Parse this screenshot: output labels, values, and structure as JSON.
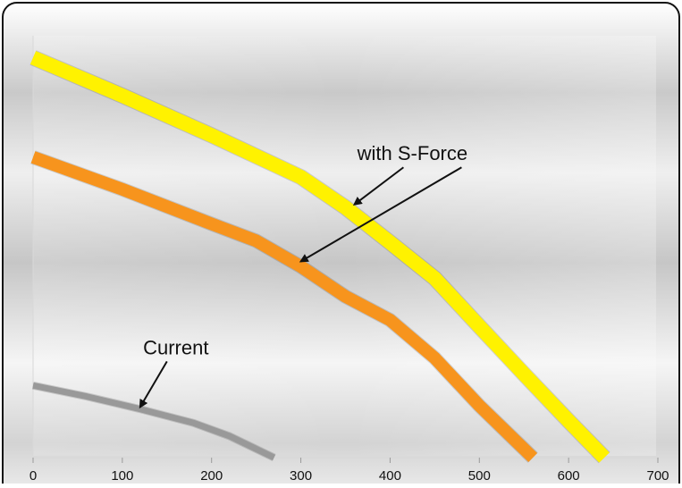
{
  "chart_data": {
    "type": "line",
    "title": "",
    "xlabel": "",
    "ylabel": "",
    "xlim": [
      0,
      700
    ],
    "ylim": [
      0,
      100
    ],
    "x_ticks": [
      0,
      100,
      200,
      300,
      400,
      500,
      600,
      700
    ],
    "x_tick_labels": [
      "0",
      "100",
      "200",
      "300",
      "400",
      "500",
      "600",
      "700"
    ],
    "grid": false,
    "legend": "none",
    "series": [
      {
        "color": "#FFF200",
        "points": [
          [
            0,
            94.8
          ],
          [
            100,
            85.8
          ],
          [
            200,
            76.4
          ],
          [
            300,
            66.5
          ],
          [
            350,
            59.3
          ],
          [
            400,
            51.0
          ],
          [
            450,
            42.5
          ],
          [
            500,
            31.1
          ],
          [
            550,
            19.8
          ],
          [
            600,
            8.7
          ],
          [
            640,
            0
          ]
        ]
      },
      {
        "color": "#F7941D",
        "points": [
          [
            0,
            71.2
          ],
          [
            100,
            63.6
          ],
          [
            200,
            55.4
          ],
          [
            250,
            51.4
          ],
          [
            300,
            45.3
          ],
          [
            350,
            38.2
          ],
          [
            400,
            32.6
          ],
          [
            450,
            23.6
          ],
          [
            500,
            12.3
          ],
          [
            560,
            0
          ]
        ]
      },
      {
        "color": "#999999",
        "points": [
          [
            0,
            17.1
          ],
          [
            60,
            14.5
          ],
          [
            120,
            11.5
          ],
          [
            180,
            8.2
          ],
          [
            220,
            5.1
          ],
          [
            270,
            0
          ]
        ]
      }
    ],
    "annotations": [
      {
        "text": "with S-Force",
        "x": 425,
        "y": 70.5,
        "arrows_to": [
          [
            360,
            60.0
          ],
          [
            300,
            46.5
          ]
        ]
      },
      {
        "text": "Current",
        "x": 160,
        "y": 24.5,
        "arrows_to": [
          [
            120,
            12.0
          ]
        ]
      }
    ]
  }
}
